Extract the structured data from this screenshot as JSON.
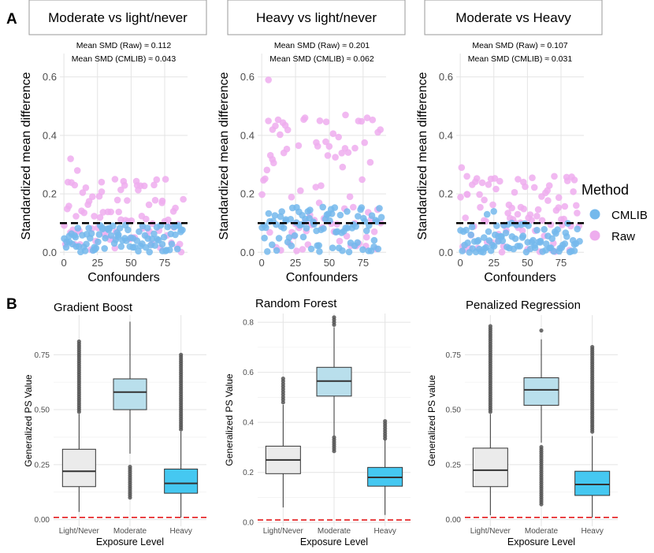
{
  "figure_labels": {
    "A": "A",
    "B": "B"
  },
  "colors": {
    "cmlib": "#74b9ec",
    "raw": "#eeadee",
    "threshold": "#000000",
    "light_box": "#ebebeb",
    "moderate_box": "#b9dfec",
    "heavy_box": "#45c8f1",
    "red_line": "#e41a1c",
    "grid": "#e4e4e4",
    "tick_text": "#4d4d4d",
    "outlier": "#555555"
  },
  "legend": {
    "title": "Method",
    "items": [
      {
        "label": "CMLIB",
        "color": "#74b9ec"
      },
      {
        "label": "Raw",
        "color": "#eeadee"
      }
    ]
  },
  "chart_data": [
    {
      "type": "scatter",
      "title": "Moderate vs light/never",
      "annotation": [
        "Mean SMD (Raw) ≈ 0.112",
        "Mean SMD (CMLIB) ≈ 0.043"
      ],
      "xlabel": "Confounders",
      "ylabel": "Standardized mean difference",
      "xlim": [
        -3,
        92
      ],
      "ylim": [
        -0.01,
        0.68
      ],
      "xticks": [
        0,
        25,
        50,
        75
      ],
      "xtick_labels": [
        "0",
        "25",
        "50",
        "75"
      ],
      "yticks": [
        0.0,
        0.2,
        0.4,
        0.6
      ],
      "ytick_labels": [
        "0.0",
        "0.2",
        "0.4",
        "0.6"
      ],
      "threshold": 0.1,
      "seed": 11,
      "raw": {
        "count": 90,
        "min": 0.0,
        "max": 0.25,
        "power": 1.0,
        "fixed": [
          [
            5,
            0.32
          ],
          [
            3,
            0.24
          ],
          [
            10,
            0.28
          ],
          [
            8,
            0.23
          ],
          [
            38,
            0.25
          ],
          [
            28,
            0.24
          ]
        ]
      },
      "cmlib": {
        "count": 90,
        "min": 0.0,
        "max": 0.095,
        "power": 0.9,
        "fixed": []
      }
    },
    {
      "type": "scatter",
      "title": "Heavy vs light/never",
      "annotation": [
        "Mean SMD (Raw) ≈ 0.201",
        "Mean SMD (CMLIB) ≈ 0.062"
      ],
      "xlabel": "Confounders",
      "ylabel": "Standardized mean difference",
      "xlim": [
        -3,
        92
      ],
      "ylim": [
        -0.01,
        0.68
      ],
      "xticks": [
        0,
        25,
        50,
        75
      ],
      "xtick_labels": [
        "0",
        "25",
        "50",
        "75"
      ],
      "yticks": [
        0.0,
        0.2,
        0.4,
        0.6
      ],
      "ytick_labels": [
        "0.0",
        "0.2",
        "0.4",
        "0.6"
      ],
      "threshold": 0.1,
      "seed": 23,
      "raw": {
        "count": 90,
        "min": 0.0,
        "max": 0.47,
        "power": 1.1,
        "fixed": [
          [
            5,
            0.59
          ],
          [
            62,
            0.47
          ],
          [
            78,
            0.46
          ],
          [
            32,
            0.46
          ],
          [
            8,
            0.42
          ],
          [
            43,
            0.45
          ]
        ]
      },
      "cmlib": {
        "count": 90,
        "min": 0.0,
        "max": 0.155,
        "power": 1.0,
        "fixed": []
      }
    },
    {
      "type": "scatter",
      "title": "Moderate vs Heavy",
      "annotation": [
        "Mean SMD (Raw) ≈ 0.107",
        "Mean SMD (CMLIB) ≈ 0.031"
      ],
      "xlabel": "Confounders",
      "ylabel": "Standardized mean difference",
      "xlim": [
        -3,
        92
      ],
      "ylim": [
        -0.01,
        0.68
      ],
      "xticks": [
        0,
        25,
        50,
        75
      ],
      "xtick_labels": [
        "0",
        "25",
        "50",
        "75"
      ],
      "yticks": [
        0.0,
        0.2,
        0.4,
        0.6
      ],
      "ytick_labels": [
        "0.0",
        "0.2",
        "0.4",
        "0.6"
      ],
      "threshold": 0.1,
      "seed": 37,
      "raw": {
        "count": 90,
        "min": 0.0,
        "max": 0.26,
        "power": 1.0,
        "fixed": [
          [
            1,
            0.29
          ],
          [
            5,
            0.26
          ],
          [
            70,
            0.26
          ],
          [
            43,
            0.25
          ],
          [
            47,
            0.24
          ]
        ]
      },
      "cmlib": {
        "count": 90,
        "min": 0.0,
        "max": 0.1,
        "power": 1.4,
        "fixed": [
          [
            20,
            0.13
          ],
          [
            25,
            0.14
          ]
        ]
      }
    },
    {
      "type": "box",
      "title": "Gradient Boost",
      "xlabel": "Exposure Level",
      "ylabel": "Generalized PS Value",
      "categories": [
        "Light/Never",
        "Moderate",
        "Heavy"
      ],
      "ylim": [
        -0.03,
        0.93
      ],
      "yticks": [
        0.0,
        0.25,
        0.5,
        0.75
      ],
      "ytick_labels": [
        "0.00",
        "0.25",
        "0.50",
        "0.75"
      ],
      "ref_line": 0.01,
      "boxes": [
        {
          "q1": 0.15,
          "median": 0.22,
          "q3": 0.32,
          "wlo": 0.035,
          "whi": 0.48,
          "out_lo": [],
          "out_hi": [
            0.49,
            0.81
          ],
          "color_key": "light_box"
        },
        {
          "q1": 0.5,
          "median": 0.58,
          "q3": 0.64,
          "wlo": 0.3,
          "whi": 0.9,
          "out_lo": [
            0.1,
            0.24
          ],
          "out_hi": [],
          "color_key": "moderate_box"
        },
        {
          "q1": 0.12,
          "median": 0.165,
          "q3": 0.23,
          "wlo": 0.01,
          "whi": 0.4,
          "out_lo": [],
          "out_hi": [
            0.41,
            0.75
          ],
          "color_key": "heavy_box"
        }
      ]
    },
    {
      "type": "box",
      "title": "Random Forest",
      "xlabel": "Exposure Level",
      "ylabel": "Generalized PS Value",
      "categories": [
        "Light/Never",
        "Moderate",
        "Heavy"
      ],
      "ylim": [
        -0.015,
        0.835
      ],
      "yticks": [
        0.0,
        0.2,
        0.4,
        0.6,
        0.8
      ],
      "ytick_labels": [
        "0.0",
        "0.2",
        "0.4",
        "0.6",
        "0.8"
      ],
      "ref_line": 0.01,
      "boxes": [
        {
          "q1": 0.195,
          "median": 0.25,
          "q3": 0.305,
          "wlo": 0.06,
          "whi": 0.47,
          "out_lo": [],
          "out_hi": [
            0.48,
            0.575
          ],
          "color_key": "light_box"
        },
        {
          "q1": 0.505,
          "median": 0.565,
          "q3": 0.62,
          "wlo": 0.345,
          "whi": 0.78,
          "out_lo": [
            0.285,
            0.34
          ],
          "out_hi": [
            0.79,
            0.82
          ],
          "color_key": "moderate_box"
        },
        {
          "q1": 0.145,
          "median": 0.18,
          "q3": 0.22,
          "wlo": 0.03,
          "whi": 0.33,
          "out_lo": [],
          "out_hi": [
            0.335,
            0.405
          ],
          "color_key": "heavy_box"
        }
      ]
    },
    {
      "type": "box",
      "title": "Penalized Regression",
      "xlabel": "Exposure Level",
      "ylabel": "Generalized PS value",
      "categories": [
        "Light/Never",
        "Moderate",
        "Heavy"
      ],
      "ylim": [
        -0.03,
        0.93
      ],
      "yticks": [
        0.0,
        0.25,
        0.5,
        0.75
      ],
      "ytick_labels": [
        "0.00",
        "0.25",
        "0.50",
        "0.75"
      ],
      "ref_line": 0.01,
      "boxes": [
        {
          "q1": 0.15,
          "median": 0.225,
          "q3": 0.325,
          "wlo": 0.02,
          "whi": 0.48,
          "out_lo": [],
          "out_hi": [
            0.49,
            0.88
          ],
          "color_key": "light_box"
        },
        {
          "q1": 0.52,
          "median": 0.59,
          "q3": 0.645,
          "wlo": 0.35,
          "whi": 0.82,
          "out_lo": [
            0.07,
            0.33
          ],
          "out_hi": [
            0.86
          ],
          "color_key": "moderate_box"
        },
        {
          "q1": 0.11,
          "median": 0.16,
          "q3": 0.22,
          "wlo": 0.01,
          "whi": 0.38,
          "out_lo": [],
          "out_hi": [
            0.4,
            0.785
          ],
          "color_key": "heavy_box"
        }
      ]
    }
  ]
}
